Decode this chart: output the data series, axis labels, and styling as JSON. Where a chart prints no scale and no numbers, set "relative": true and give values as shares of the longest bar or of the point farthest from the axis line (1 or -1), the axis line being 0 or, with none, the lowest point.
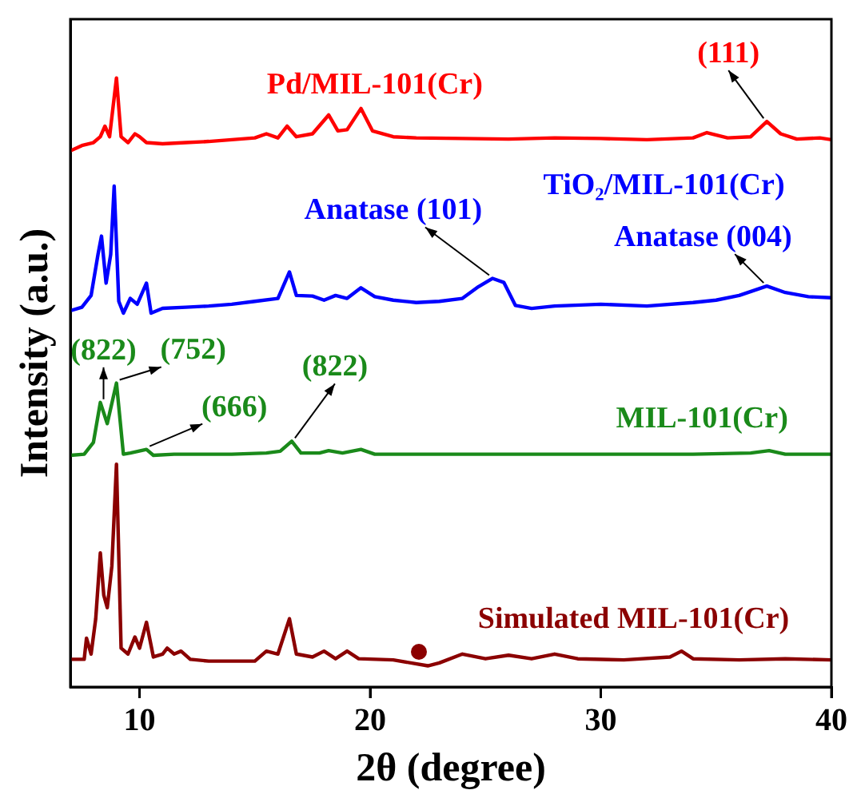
{
  "chart_data": {
    "type": "line",
    "relative": true,
    "xlabel": "2θ (degree)",
    "ylabel": "Intensity (a.u.)",
    "xlim": [
      7,
      40
    ],
    "xticks": [
      10,
      20,
      30,
      40
    ],
    "tick_labels": "x",
    "grid": false,
    "legend": false,
    "marker": "none",
    "line_style": "solid",
    "series": [
      {
        "name": "Pd/MIL-101(Cr)",
        "color": "#ff0000",
        "x": [
          7.0,
          7.5,
          8.0,
          8.3,
          8.5,
          8.7,
          9.0,
          9.2,
          9.5,
          9.8,
          10.0,
          10.3,
          11,
          12,
          13,
          14,
          15,
          15.5,
          16,
          16.4,
          16.8,
          17.5,
          18.2,
          18.6,
          19.0,
          19.6,
          20.1,
          21,
          22,
          24,
          26,
          28,
          30,
          32,
          34,
          34.6,
          35.5,
          36.5,
          37.2,
          37.8,
          38.5,
          39.5,
          40
        ],
        "values": [
          0.876,
          0.885,
          0.89,
          0.9,
          0.918,
          0.9,
          1.0,
          0.9,
          0.89,
          0.905,
          0.9,
          0.89,
          0.888,
          0.89,
          0.892,
          0.895,
          0.898,
          0.905,
          0.898,
          0.918,
          0.9,
          0.905,
          0.937,
          0.91,
          0.912,
          0.948,
          0.91,
          0.9,
          0.898,
          0.897,
          0.896,
          0.898,
          0.897,
          0.895,
          0.898,
          0.907,
          0.898,
          0.9,
          0.926,
          0.905,
          0.896,
          0.898,
          0.895
        ]
      },
      {
        "name": "TiO₂/MIL-101(Cr)",
        "color": "#0000ff",
        "x": [
          7.0,
          7.5,
          7.9,
          8.2,
          8.35,
          8.55,
          8.75,
          8.9,
          9.1,
          9.3,
          9.6,
          9.9,
          10.3,
          10.5,
          11,
          12,
          13,
          14,
          15,
          16,
          16.5,
          16.8,
          17.5,
          18,
          18.5,
          19,
          19.6,
          20.2,
          21,
          22,
          23,
          24,
          24.7,
          25.3,
          25.8,
          26.3,
          27,
          28,
          30,
          32,
          34,
          35,
          36,
          37.2,
          38,
          39,
          40
        ],
        "values": [
          0.604,
          0.61,
          0.63,
          0.7,
          0.731,
          0.651,
          0.7,
          0.816,
          0.62,
          0.6,
          0.625,
          0.615,
          0.651,
          0.6,
          0.608,
          0.61,
          0.612,
          0.615,
          0.62,
          0.625,
          0.67,
          0.63,
          0.629,
          0.622,
          0.63,
          0.625,
          0.643,
          0.628,
          0.622,
          0.618,
          0.62,
          0.625,
          0.645,
          0.659,
          0.652,
          0.613,
          0.608,
          0.612,
          0.615,
          0.612,
          0.618,
          0.622,
          0.63,
          0.646,
          0.635,
          0.628,
          0.626
        ]
      },
      {
        "name": "MIL-101(Cr)",
        "color": "#1a8a1a",
        "x": [
          7,
          7.6,
          8.0,
          8.3,
          8.6,
          9.0,
          9.3,
          9.6,
          10.3,
          10.6,
          11.5,
          12.5,
          14,
          15.5,
          16.1,
          16.6,
          17,
          17.8,
          18.2,
          18.8,
          19.6,
          20.2,
          22,
          25,
          28,
          31,
          34,
          36.5,
          37.3,
          38,
          40
        ],
        "values": [
          0.358,
          0.36,
          0.38,
          0.448,
          0.412,
          0.481,
          0.36,
          0.362,
          0.368,
          0.358,
          0.36,
          0.36,
          0.36,
          0.362,
          0.365,
          0.382,
          0.362,
          0.362,
          0.366,
          0.362,
          0.368,
          0.36,
          0.36,
          0.36,
          0.36,
          0.36,
          0.36,
          0.362,
          0.366,
          0.36,
          0.36
        ]
      },
      {
        "name": "Simulated MIL-101(Cr)",
        "color": "#8b0000",
        "x": [
          7,
          7.6,
          7.7,
          7.9,
          8.1,
          8.3,
          8.45,
          8.6,
          8.8,
          9.0,
          9.2,
          9.5,
          9.8,
          10.0,
          10.3,
          10.6,
          11.0,
          11.2,
          11.5,
          11.8,
          12.2,
          13,
          14,
          15,
          15.5,
          16,
          16.5,
          16.8,
          17.5,
          18.0,
          18.5,
          19.0,
          19.5,
          21,
          22.5,
          23,
          24,
          25,
          26,
          27,
          28,
          29,
          31,
          33,
          33.5,
          34,
          36,
          38,
          40
        ],
        "values": [
          0.011,
          0.011,
          0.047,
          0.02,
          0.08,
          0.192,
          0.12,
          0.099,
          0.17,
          0.343,
          0.03,
          0.02,
          0.049,
          0.03,
          0.074,
          0.015,
          0.02,
          0.03,
          0.02,
          0.025,
          0.011,
          0.008,
          0.008,
          0.008,
          0.025,
          0.02,
          0.08,
          0.02,
          0.015,
          0.025,
          0.012,
          0.025,
          0.012,
          0.01,
          0.0,
          0.005,
          0.02,
          0.012,
          0.018,
          0.012,
          0.02,
          0.012,
          0.01,
          0.015,
          0.025,
          0.012,
          0.01,
          0.012,
          0.01
        ]
      }
    ],
    "annotations": [
      {
        "text": "(111)",
        "x": 37.2,
        "y": 0.926
      },
      {
        "text": "Anatase (101)",
        "x": 25.3,
        "y": 0.659
      },
      {
        "text": "Anatase (004)",
        "x": 37.2,
        "y": 0.646
      },
      {
        "text": "(822)",
        "x": 8.3,
        "y": 0.448
      },
      {
        "text": "(752)",
        "x": 9.0,
        "y": 0.481
      },
      {
        "text": "(666)",
        "x": 10.3,
        "y": 0.368
      },
      {
        "text": "(822)",
        "x": 16.6,
        "y": 0.382
      }
    ]
  }
}
